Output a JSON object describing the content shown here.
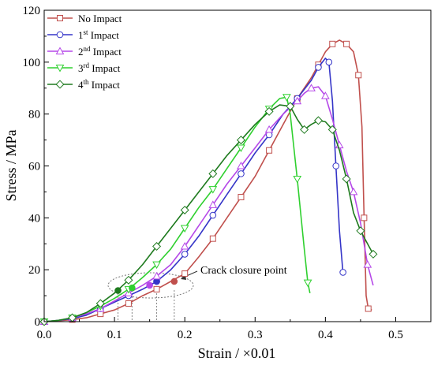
{
  "chart_data": {
    "type": "line",
    "xlabel": "Strain / ×0.01",
    "ylabel": "Stress / MPa",
    "xlim": [
      0,
      0.55
    ],
    "ylim": [
      0,
      120
    ],
    "xticks": [
      "0.0",
      "0.1",
      "0.2",
      "0.3",
      "0.4",
      "0.5"
    ],
    "xtick_values": [
      0,
      0.1,
      0.2,
      0.3,
      0.4,
      0.5
    ],
    "yticks": [
      "0",
      "20",
      "40",
      "60",
      "80",
      "100",
      "120"
    ],
    "ytick_values": [
      0,
      20,
      40,
      60,
      80,
      100,
      120
    ],
    "grid": false,
    "legend_position": "top-left",
    "annotation": {
      "text": "Crack closure point",
      "points_x": [
        0.105,
        0.125,
        0.16,
        0.185
      ]
    },
    "series": [
      {
        "name": "No Impact",
        "name_base": "No Impact",
        "name_sup": "",
        "name_rest": "",
        "color": "#c0504d",
        "marker": "square",
        "closure_point": [
          0.185,
          15.5
        ],
        "x": [
          0,
          0.02,
          0.04,
          0.06,
          0.08,
          0.1,
          0.12,
          0.14,
          0.16,
          0.18,
          0.2,
          0.22,
          0.24,
          0.26,
          0.28,
          0.3,
          0.32,
          0.34,
          0.36,
          0.38,
          0.39,
          0.4,
          0.41,
          0.42,
          0.43,
          0.44,
          0.447,
          0.452,
          0.455,
          0.458,
          0.461,
          0.466
        ],
        "y": [
          0,
          0.3,
          0.8,
          1.5,
          3,
          4.5,
          7,
          10,
          12.5,
          15.5,
          18.5,
          25,
          32,
          40,
          48,
          56,
          66,
          76,
          86,
          94,
          99,
          104,
          107,
          108.5,
          107,
          104,
          95,
          75,
          40,
          10,
          5,
          4.5
        ]
      },
      {
        "name": "1st Impact",
        "name_base": "1",
        "name_sup": "st",
        "name_rest": " Impact",
        "color": "#3535c8",
        "marker": "circle",
        "closure_point": [
          0.16,
          15.5
        ],
        "x": [
          0,
          0.02,
          0.04,
          0.06,
          0.08,
          0.1,
          0.12,
          0.14,
          0.16,
          0.18,
          0.2,
          0.22,
          0.24,
          0.26,
          0.28,
          0.3,
          0.32,
          0.34,
          0.36,
          0.38,
          0.39,
          0.4,
          0.405,
          0.41,
          0.415,
          0.42,
          0.425
        ],
        "y": [
          0,
          0.5,
          1.2,
          2.5,
          5,
          7.5,
          10,
          12.5,
          15.5,
          20,
          26,
          33,
          41,
          49,
          57,
          65,
          72,
          80,
          86,
          93,
          98,
          101.5,
          100,
          85,
          60,
          35,
          19
        ]
      },
      {
        "name": "2nd Impact",
        "name_base": "2",
        "name_sup": "nd",
        "name_rest": " Impact",
        "color": "#b548e8",
        "marker": "triangle-up",
        "closure_point": [
          0.15,
          14
        ],
        "x": [
          0,
          0.02,
          0.04,
          0.06,
          0.08,
          0.1,
          0.12,
          0.14,
          0.16,
          0.18,
          0.2,
          0.22,
          0.24,
          0.26,
          0.28,
          0.3,
          0.32,
          0.34,
          0.36,
          0.37,
          0.38,
          0.39,
          0.4,
          0.41,
          0.42,
          0.43,
          0.44,
          0.45,
          0.46,
          0.468
        ],
        "y": [
          0,
          0.5,
          1.5,
          3,
          5,
          8,
          11,
          14,
          17.5,
          22,
          29,
          37,
          45,
          53,
          60,
          67,
          74,
          80,
          85,
          88,
          90,
          90.5,
          87,
          78,
          68,
          58,
          50,
          38,
          22,
          14
        ]
      },
      {
        "name": "3rd Impact",
        "name_base": "3",
        "name_sup": "rd",
        "name_rest": " Impact",
        "color": "#2fd02f",
        "marker": "triangle-down",
        "closure_point": [
          0.125,
          13
        ],
        "x": [
          0,
          0.02,
          0.04,
          0.06,
          0.08,
          0.1,
          0.12,
          0.14,
          0.16,
          0.18,
          0.2,
          0.22,
          0.24,
          0.26,
          0.28,
          0.3,
          0.32,
          0.335,
          0.345,
          0.35,
          0.36,
          0.37,
          0.375,
          0.378
        ],
        "y": [
          0,
          0.5,
          1.5,
          3.5,
          6,
          9,
          12.5,
          17,
          22,
          28,
          36,
          44,
          51,
          59,
          67,
          75,
          82,
          86,
          86.5,
          80,
          55,
          28,
          15,
          11
        ]
      },
      {
        "name": "4th Impact",
        "name_base": "4",
        "name_sup": "th",
        "name_rest": " Impact",
        "color": "#1e7a1e",
        "marker": "diamond",
        "closure_point": [
          0.105,
          12
        ],
        "x": [
          0,
          0.02,
          0.04,
          0.06,
          0.08,
          0.1,
          0.12,
          0.14,
          0.16,
          0.18,
          0.2,
          0.22,
          0.24,
          0.26,
          0.28,
          0.3,
          0.32,
          0.335,
          0.35,
          0.36,
          0.37,
          0.38,
          0.39,
          0.4,
          0.41,
          0.42,
          0.43,
          0.44,
          0.45,
          0.46,
          0.468
        ],
        "y": [
          0,
          0.5,
          1.5,
          3.5,
          7,
          11,
          16,
          22,
          29,
          36,
          43,
          50,
          57,
          64,
          70,
          76,
          81,
          83.5,
          83,
          78,
          74,
          76,
          77.5,
          77,
          74,
          66,
          55,
          42,
          35,
          30,
          26
        ]
      }
    ]
  }
}
